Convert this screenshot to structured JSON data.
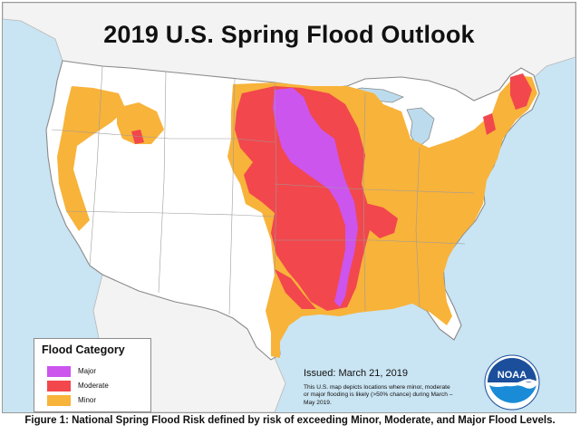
{
  "title": "2019 U.S. Spring Flood Outlook",
  "legend": {
    "title": "Flood Category",
    "items": [
      {
        "label": "Major",
        "color": "#cc55ee"
      },
      {
        "label": "Moderate",
        "color": "#f2474c"
      },
      {
        "label": "Minor",
        "color": "#f8b33a"
      }
    ]
  },
  "colors": {
    "water": "#c9e4f2",
    "land": "#ffffff",
    "border": "#9a9a9a",
    "great_lakes": "#bcdcee"
  },
  "issued": "Issued:  March 21, 2019",
  "description": "This U.S. map depicts locations where minor, moderate or major flooding is likely (>50% chance) during March – May 2019.",
  "logo": {
    "text": "NOAA",
    "icon": "noaa-logo-icon"
  },
  "caption": "Figure 1: National Spring Flood Risk defined by risk of exceeding Minor, Moderate, and Major Flood Levels."
}
